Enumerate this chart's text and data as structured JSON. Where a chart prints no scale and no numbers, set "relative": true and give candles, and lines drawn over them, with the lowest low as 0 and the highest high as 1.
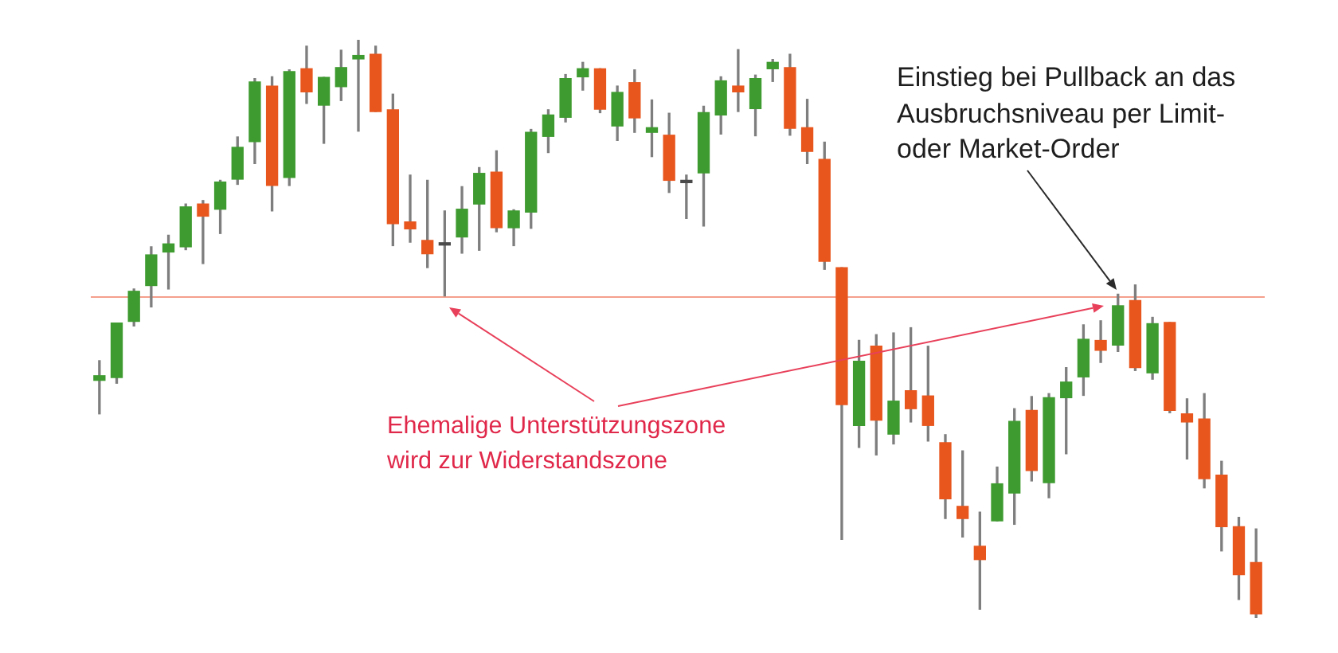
{
  "chart_data": {
    "type": "candlestick",
    "relative": true,
    "categories": [
      null,
      null,
      null,
      null,
      null,
      null,
      null,
      null,
      null,
      null,
      null,
      null,
      null,
      null,
      null,
      null,
      null,
      null,
      null,
      null,
      null,
      null,
      null,
      null,
      null,
      null,
      null,
      null,
      null,
      null,
      null,
      null,
      null,
      null,
      null,
      null,
      null,
      null,
      null,
      null,
      null,
      null,
      null,
      null,
      null,
      null,
      null,
      null,
      null,
      null,
      null,
      null,
      null,
      null,
      null,
      null,
      null,
      null,
      null,
      null,
      null,
      null,
      null,
      null,
      null,
      null,
      null,
      null
    ],
    "ohlc": [
      [
        0.411,
        0.445,
        0.353,
        0.419
      ],
      [
        0.416,
        0.51,
        0.406,
        0.51
      ],
      [
        0.513,
        0.569,
        0.505,
        0.565
      ],
      [
        0.575,
        0.642,
        0.538,
        0.628
      ],
      [
        0.633,
        0.662,
        0.569,
        0.647
      ],
      [
        0.642,
        0.716,
        0.637,
        0.711
      ],
      [
        0.716,
        0.722,
        0.613,
        0.695
      ],
      [
        0.707,
        0.757,
        0.665,
        0.754
      ],
      [
        0.759,
        0.832,
        0.75,
        0.814
      ],
      [
        0.824,
        0.933,
        0.786,
        0.927
      ],
      [
        0.92,
        0.936,
        0.704,
        0.748
      ],
      [
        0.762,
        0.948,
        0.748,
        0.945
      ],
      [
        0.95,
        0.989,
        0.89,
        0.91
      ],
      [
        0.887,
        0.935,
        0.821,
        0.935
      ],
      [
        0.919,
        0.982,
        0.895,
        0.952
      ],
      [
        0.967,
        1.0,
        0.842,
        0.973
      ],
      [
        0.975,
        0.989,
        0.876,
        0.876
      ],
      [
        0.879,
        0.906,
        0.644,
        0.682
      ],
      [
        0.685,
        0.766,
        0.65,
        0.673
      ],
      [
        0.653,
        0.757,
        0.606,
        0.63
      ],
      [
        0.645,
        0.704,
        0.557,
        0.649
      ],
      [
        0.659,
        0.746,
        0.631,
        0.707
      ],
      [
        0.716,
        0.779,
        0.636,
        0.769
      ],
      [
        0.771,
        0.808,
        0.668,
        0.675
      ],
      [
        0.675,
        0.706,
        0.644,
        0.704
      ],
      [
        0.702,
        0.845,
        0.674,
        0.84
      ],
      [
        0.833,
        0.879,
        0.805,
        0.87
      ],
      [
        0.866,
        0.94,
        0.858,
        0.933
      ],
      [
        0.936,
        0.961,
        0.913,
        0.95
      ],
      [
        0.95,
        0.95,
        0.874,
        0.88
      ],
      [
        0.851,
        0.92,
        0.826,
        0.909
      ],
      [
        0.926,
        0.948,
        0.84,
        0.865
      ],
      [
        0.84,
        0.896,
        0.798,
        0.848
      ],
      [
        0.835,
        0.873,
        0.736,
        0.757
      ],
      [
        0.753,
        0.766,
        0.691,
        0.757
      ],
      [
        0.77,
        0.885,
        0.678,
        0.874
      ],
      [
        0.87,
        0.936,
        0.837,
        0.929
      ],
      [
        0.92,
        0.983,
        0.876,
        0.91
      ],
      [
        0.881,
        0.939,
        0.834,
        0.933
      ],
      [
        0.95,
        0.966,
        0.928,
        0.961
      ],
      [
        0.952,
        0.975,
        0.835,
        0.847
      ],
      [
        0.848,
        0.897,
        0.786,
        0.807
      ],
      [
        0.793,
        0.823,
        0.603,
        0.617
      ],
      [
        0.606,
        0.606,
        0.136,
        0.369
      ],
      [
        0.333,
        0.48,
        0.295,
        0.444
      ],
      [
        0.47,
        0.49,
        0.282,
        0.342
      ],
      [
        0.318,
        0.493,
        0.301,
        0.375
      ],
      [
        0.393,
        0.502,
        0.339,
        0.362
      ],
      [
        0.384,
        0.47,
        0.306,
        0.333
      ],
      [
        0.303,
        0.317,
        0.172,
        0.206
      ],
      [
        0.193,
        0.289,
        0.14,
        0.172
      ],
      [
        0.124,
        0.183,
        0.015,
        0.101
      ],
      [
        0.168,
        0.261,
        0.168,
        0.232
      ],
      [
        0.216,
        0.362,
        0.162,
        0.34
      ],
      [
        0.359,
        0.383,
        0.237,
        0.255
      ],
      [
        0.234,
        0.388,
        0.208,
        0.381
      ],
      [
        0.381,
        0.433,
        0.284,
        0.408
      ],
      [
        0.417,
        0.507,
        0.385,
        0.482
      ],
      [
        0.48,
        0.514,
        0.442,
        0.463
      ],
      [
        0.472,
        0.56,
        0.461,
        0.54
      ],
      [
        0.549,
        0.576,
        0.428,
        0.433
      ],
      [
        0.424,
        0.52,
        0.413,
        0.509
      ],
      [
        0.511,
        0.511,
        0.355,
        0.359
      ],
      [
        0.353,
        0.379,
        0.275,
        0.339
      ],
      [
        0.344,
        0.388,
        0.225,
        0.241
      ],
      [
        0.247,
        0.271,
        0.116,
        0.158
      ],
      [
        0.158,
        0.174,
        0.032,
        0.075
      ],
      [
        0.096,
        0.154,
        0.0,
        0.007
      ]
    ],
    "colors": [
      "#3e9b2f",
      "#3e9b2f",
      "#3e9b2f",
      "#3e9b2f",
      "#3e9b2f",
      "#3e9b2f",
      "#e8561d",
      "#3e9b2f",
      "#3e9b2f",
      "#3e9b2f",
      "#e8561d",
      "#3e9b2f",
      "#e8561d",
      "#3e9b2f",
      "#3e9b2f",
      "#3e9b2f",
      "#e8561d",
      "#e8561d",
      "#e8561d",
      "#e8561d",
      "#4a4a4a",
      "#3e9b2f",
      "#3e9b2f",
      "#e8561d",
      "#3e9b2f",
      "#3e9b2f",
      "#3e9b2f",
      "#3e9b2f",
      "#3e9b2f",
      "#e8561d",
      "#3e9b2f",
      "#e8561d",
      "#3e9b2f",
      "#e8561d",
      "#4a4a4a",
      "#3e9b2f",
      "#3e9b2f",
      "#e8561d",
      "#3e9b2f",
      "#3e9b2f",
      "#e8561d",
      "#e8561d",
      "#e8561d",
      "#e8561d",
      "#3e9b2f",
      "#e8561d",
      "#3e9b2f",
      "#e8561d",
      "#e8561d",
      "#e8561d",
      "#e8561d",
      "#e8561d",
      "#3e9b2f",
      "#3e9b2f",
      "#e8561d",
      "#3e9b2f",
      "#3e9b2f",
      "#3e9b2f",
      "#e8561d",
      "#3e9b2f",
      "#e8561d",
      "#3e9b2f",
      "#e8561d",
      "#e8561d",
      "#e8561d",
      "#e8561d",
      "#e8561d",
      "#e8561d"
    ],
    "ref_lines": [
      {
        "axis": "y",
        "value": 0.557,
        "color": "#f5a08c"
      }
    ],
    "annotations": [
      "Einstieg bei Pullback an das Ausbruchsniveau per Limit- oder Market-Order",
      "Ehemalige Unterstützungszone wird zur Widerstandszone"
    ]
  }
}
